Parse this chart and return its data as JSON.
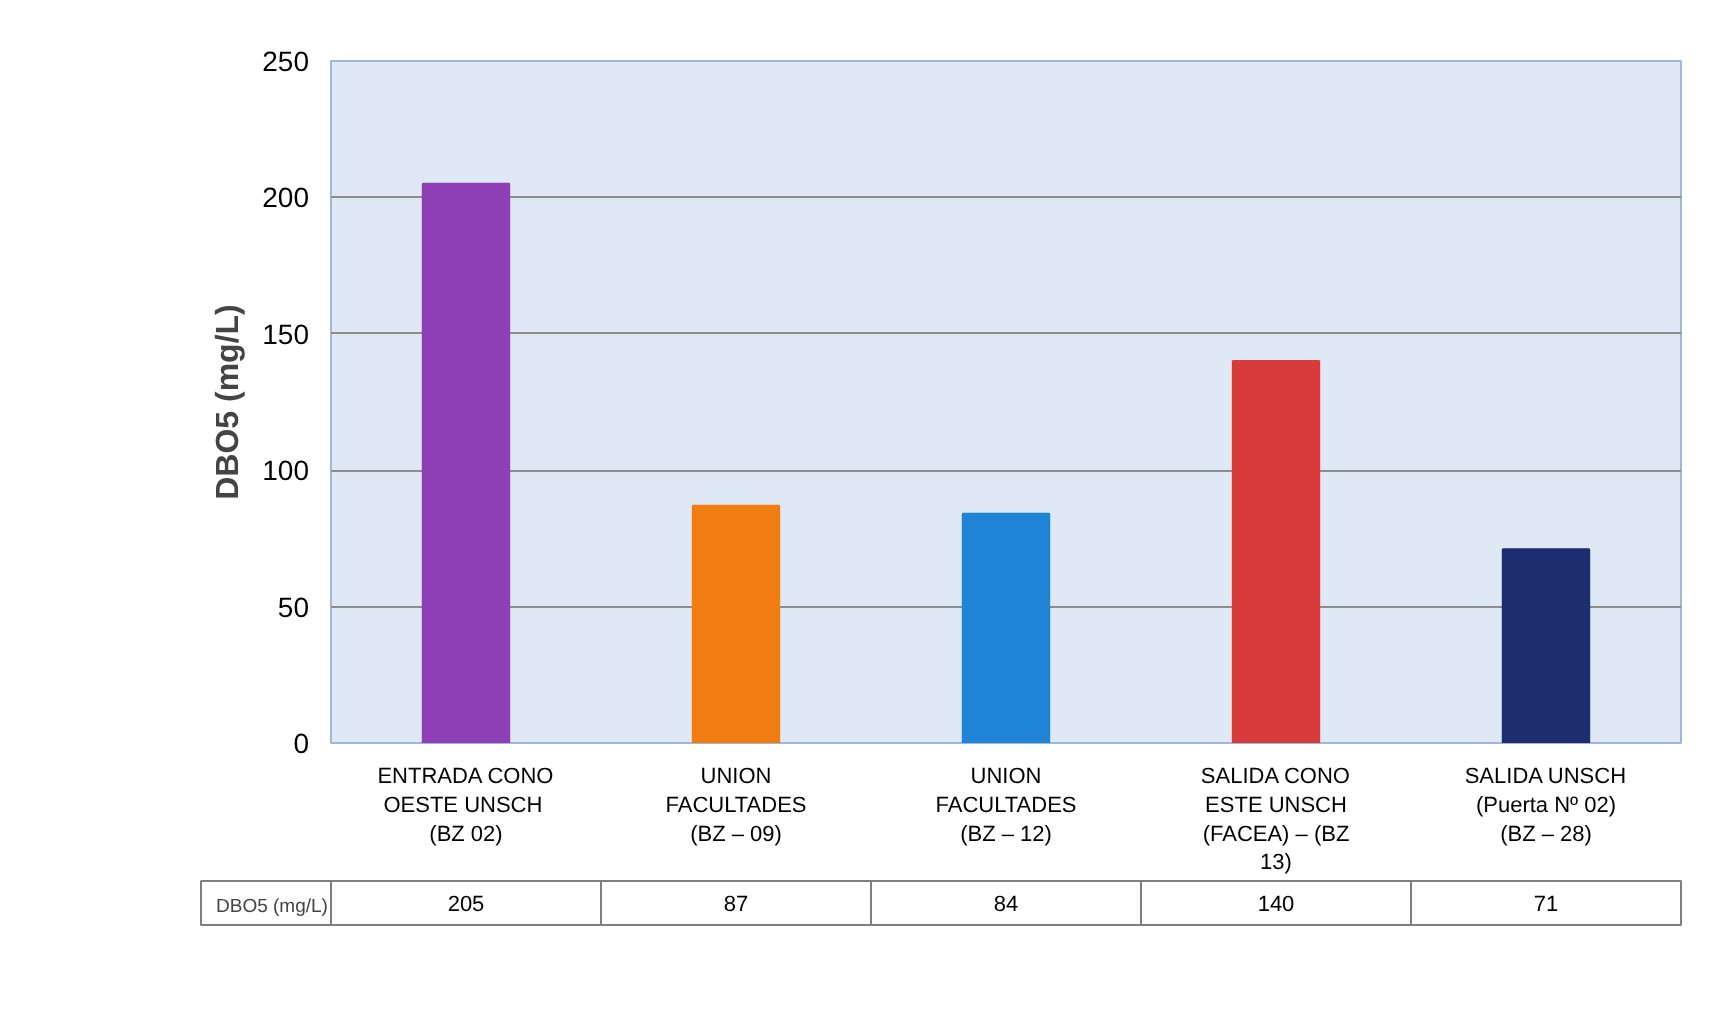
{
  "chart_data": {
    "type": "bar",
    "ylabel": "DBO5 (mg/L)",
    "categories": [
      "ENTRADA CONO\nOESTE  UNSCH\n(BZ 02)",
      "UNION\nFACULTADES\n(BZ – 09)",
      "UNION\nFACULTADES\n(BZ – 12)",
      "SALIDA CONO\nESTE UNSCH\n(FACEA) – (BZ\n13)",
      "SALIDA UNSCH\n(Puerta Nº 02)\n(BZ – 28)"
    ],
    "series": [
      {
        "name": "DBO5 (mg/L)",
        "values": [
          205,
          87,
          84,
          140,
          71
        ]
      }
    ],
    "colors": [
      "#8e3fb5",
      "#f07c12",
      "#1f84d6",
      "#d83b3b",
      "#1c2e6e"
    ],
    "ylim": [
      0,
      250
    ],
    "yticks": [
      0,
      50,
      100,
      150,
      200,
      250
    ],
    "grid": "y",
    "data_labels": true,
    "legend": "bottom"
  }
}
